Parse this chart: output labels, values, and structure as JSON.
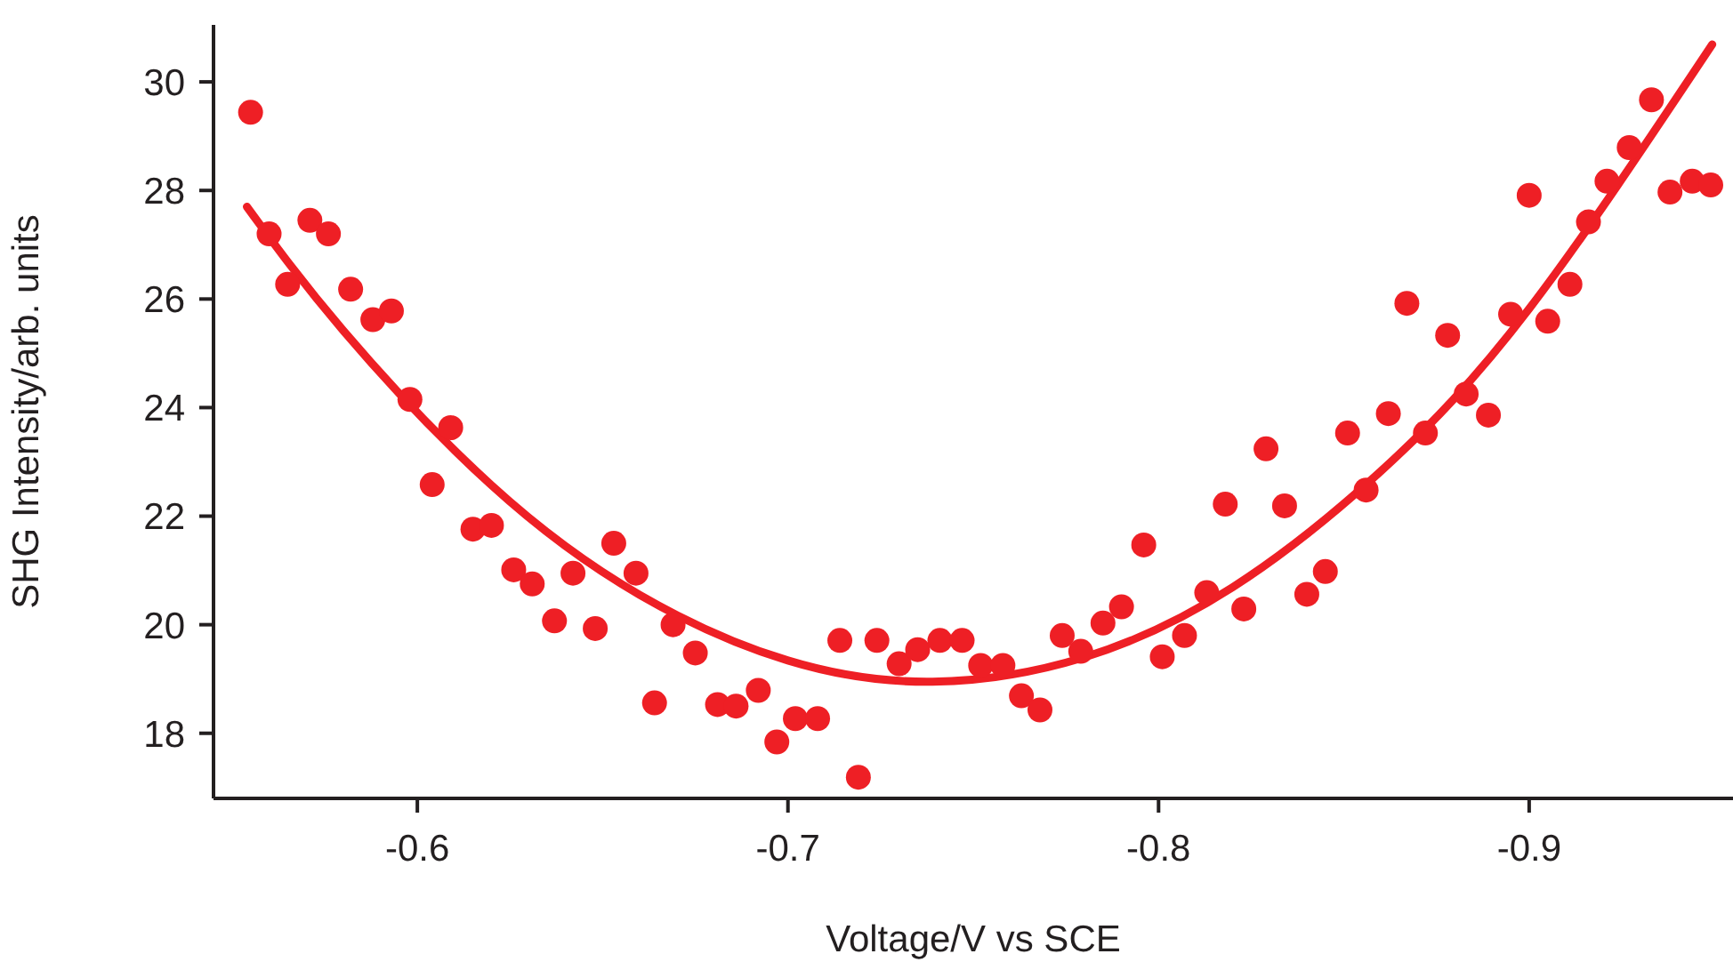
{
  "chart_data": {
    "type": "scatter",
    "xlabel": "Voltage/V vs SCE",
    "ylabel": "SHG Intensity/arb. units",
    "xlim": [
      -0.545,
      -0.955
    ],
    "xticks": [
      -0.6,
      -0.7,
      -0.8,
      -0.9
    ],
    "ylim": [
      16.8,
      31.05
    ],
    "yticks": [
      18,
      20,
      22,
      24,
      26,
      28,
      30
    ],
    "grid": false,
    "legend": false,
    "series": [
      {
        "marker": "circle",
        "color": "#ee1f25",
        "x": [
          -0.555,
          -0.56,
          -0.565,
          -0.571,
          -0.576,
          -0.582,
          -0.588,
          -0.593,
          -0.598,
          -0.604,
          -0.609,
          -0.615,
          -0.62,
          -0.626,
          -0.631,
          -0.637,
          -0.642,
          -0.648,
          -0.653,
          -0.659,
          -0.664,
          -0.669,
          -0.675,
          -0.681,
          -0.686,
          -0.692,
          -0.697,
          -0.702,
          -0.708,
          -0.714,
          -0.719,
          -0.724,
          -0.73,
          -0.735,
          -0.741,
          -0.747,
          -0.752,
          -0.758,
          -0.763,
          -0.768,
          -0.774,
          -0.779,
          -0.785,
          -0.79,
          -0.796,
          -0.801,
          -0.807,
          -0.813,
          -0.818,
          -0.823,
          -0.829,
          -0.834,
          -0.84,
          -0.845,
          -0.851,
          -0.856,
          -0.862,
          -0.867,
          -0.872,
          -0.878,
          -0.883,
          -0.889,
          -0.895,
          -0.9,
          -0.905,
          -0.911,
          -0.916,
          -0.921,
          -0.927,
          -0.933,
          -0.938,
          -0.944,
          -0.949
        ],
        "values": [
          29.44,
          27.2,
          26.27,
          27.45,
          27.2,
          26.18,
          25.62,
          25.78,
          24.15,
          22.58,
          23.63,
          21.76,
          21.83,
          21.01,
          20.75,
          20.07,
          20.95,
          19.93,
          21.5,
          20.95,
          18.56,
          20.0,
          19.48,
          18.53,
          18.5,
          18.79,
          17.84,
          18.27,
          18.27,
          19.71,
          17.19,
          19.71,
          19.28,
          19.54,
          19.71,
          19.71,
          19.25,
          19.25,
          18.69,
          18.43,
          19.8,
          19.51,
          20.03,
          20.33,
          21.47,
          19.41,
          19.8,
          20.59,
          22.22,
          20.29,
          23.24,
          22.19,
          20.56,
          20.98,
          23.53,
          22.48,
          23.89,
          25.92,
          23.53,
          25.33,
          24.25,
          23.86,
          25.72,
          27.91,
          25.59,
          26.27,
          27.42,
          28.17,
          28.79,
          29.67,
          27.97,
          28.17,
          28.1
        ]
      },
      {
        "type": "line",
        "color": "#ee1f25",
        "x": [
          -0.554,
          -0.58,
          -0.62,
          -0.66,
          -0.7,
          -0.739,
          -0.78,
          -0.82,
          -0.86,
          -0.9,
          -0.9494
        ],
        "values": [
          27.7,
          25.42,
          22.57,
          20.55,
          19.34,
          18.95,
          19.4,
          20.69,
          22.83,
          25.82,
          30.69
        ]
      }
    ]
  }
}
